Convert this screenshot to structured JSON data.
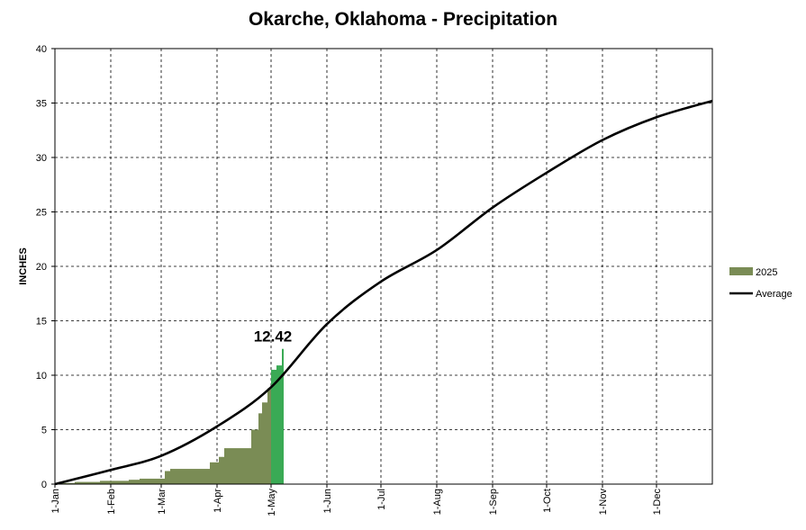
{
  "chart_data": {
    "type": "area",
    "title": "Okarche, Oklahoma - Precipitation",
    "ylabel": "INCHES",
    "xlabel": "",
    "ylim": [
      0,
      40
    ],
    "yticks": [
      0,
      5,
      10,
      15,
      20,
      25,
      30,
      35,
      40
    ],
    "xlim": [
      1,
      366
    ],
    "x_ticks": [
      {
        "label": "1-Jan",
        "day": 1
      },
      {
        "label": "1-Feb",
        "day": 32
      },
      {
        "label": "1-Mar",
        "day": 60
      },
      {
        "label": "1-Apr",
        "day": 91
      },
      {
        "label": "1-May",
        "day": 121
      },
      {
        "label": "1-Jun",
        "day": 152
      },
      {
        "label": "1-Jul",
        "day": 182
      },
      {
        "label": "1-Aug",
        "day": 213
      },
      {
        "label": "1-Sep",
        "day": 244
      },
      {
        "label": "1-Oct",
        "day": 274
      },
      {
        "label": "1-Nov",
        "day": 305
      },
      {
        "label": "1-Dec",
        "day": 335
      }
    ],
    "grid": true,
    "legend_position": "right",
    "series": [
      {
        "name": "2025",
        "type": "step-area",
        "color": "#7a8c55",
        "highlight_color": "#3aaa55",
        "highlight_from_day": 121,
        "points": [
          [
            1,
            0.0
          ],
          [
            5,
            0.1
          ],
          [
            12,
            0.2
          ],
          [
            26,
            0.3
          ],
          [
            42,
            0.4
          ],
          [
            48,
            0.5
          ],
          [
            62,
            1.2
          ],
          [
            65,
            1.4
          ],
          [
            87,
            2.0
          ],
          [
            92,
            2.5
          ],
          [
            95,
            3.3
          ],
          [
            110,
            5.0
          ],
          [
            114,
            6.5
          ],
          [
            116,
            7.5
          ],
          [
            119,
            8.8
          ],
          [
            121,
            10.5
          ],
          [
            124,
            10.9
          ],
          [
            127,
            12.42
          ],
          [
            128,
            12.42
          ]
        ]
      },
      {
        "name": "Average",
        "type": "line",
        "color": "#000000",
        "points": [
          [
            1,
            0.0
          ],
          [
            32,
            1.3
          ],
          [
            60,
            2.6
          ],
          [
            91,
            5.3
          ],
          [
            121,
            8.9
          ],
          [
            152,
            14.7
          ],
          [
            182,
            18.6
          ],
          [
            213,
            21.5
          ],
          [
            244,
            25.4
          ],
          [
            274,
            28.6
          ],
          [
            305,
            31.6
          ],
          [
            335,
            33.7
          ],
          [
            366,
            35.2
          ]
        ]
      }
    ],
    "annotations": [
      {
        "text": "12.42",
        "day": 127,
        "value": 12.42
      }
    ]
  }
}
